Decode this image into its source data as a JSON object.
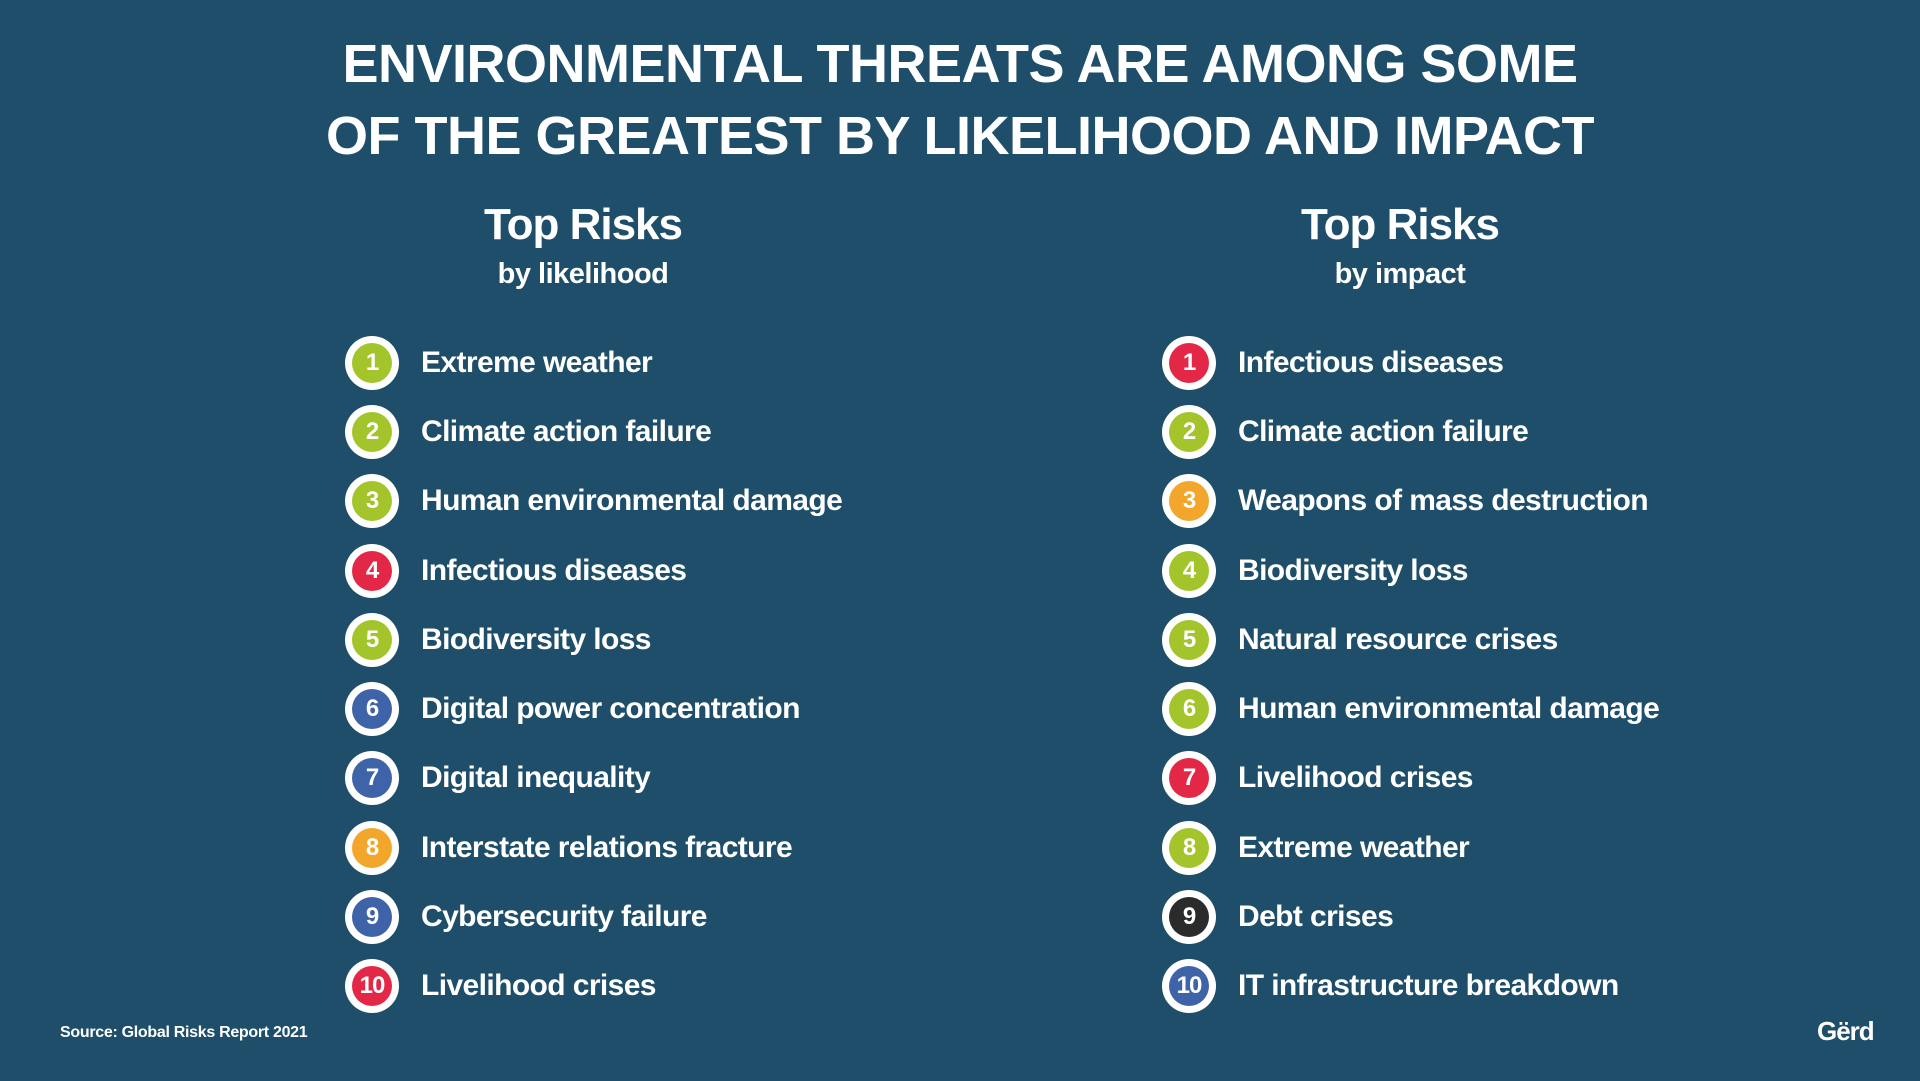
{
  "headline": {
    "line1": "ENVIRONMENTAL THREATS ARE AMONG SOME",
    "line2": "OF THE GREATEST BY LIKELIHOOD AND IMPACT"
  },
  "colors": {
    "background": "#1e4e69",
    "environmental": "#a3c42a",
    "societal": "#e22846",
    "technological": "#3f63a8",
    "geopolitical": "#f2a62b",
    "economic": "#2b2b2b"
  },
  "likelihood": {
    "title": "Top Risks",
    "subtitle": "by likelihood",
    "items": [
      {
        "rank": "1",
        "label": "Extreme weather",
        "color": "#a3c42a"
      },
      {
        "rank": "2",
        "label": "Climate action failure",
        "color": "#a3c42a"
      },
      {
        "rank": "3",
        "label": "Human environmental damage",
        "color": "#a3c42a"
      },
      {
        "rank": "4",
        "label": "Infectious diseases",
        "color": "#e22846"
      },
      {
        "rank": "5",
        "label": "Biodiversity loss",
        "color": "#a3c42a"
      },
      {
        "rank": "6",
        "label": "Digital power concentration",
        "color": "#3f63a8"
      },
      {
        "rank": "7",
        "label": "Digital inequality",
        "color": "#3f63a8"
      },
      {
        "rank": "8",
        "label": "Interstate relations fracture",
        "color": "#f2a62b"
      },
      {
        "rank": "9",
        "label": "Cybersecurity failure",
        "color": "#3f63a8"
      },
      {
        "rank": "10",
        "label": "Livelihood crises",
        "color": "#e22846"
      }
    ]
  },
  "impact": {
    "title": "Top Risks",
    "subtitle": "by impact",
    "items": [
      {
        "rank": "1",
        "label": "Infectious diseases",
        "color": "#e22846"
      },
      {
        "rank": "2",
        "label": "Climate action failure",
        "color": "#a3c42a"
      },
      {
        "rank": "3",
        "label": "Weapons of mass destruction",
        "color": "#f2a62b"
      },
      {
        "rank": "4",
        "label": "Biodiversity loss",
        "color": "#a3c42a"
      },
      {
        "rank": "5",
        "label": "Natural resource crises",
        "color": "#a3c42a"
      },
      {
        "rank": "6",
        "label": "Human environmental damage",
        "color": "#a3c42a"
      },
      {
        "rank": "7",
        "label": "Livelihood crises",
        "color": "#e22846"
      },
      {
        "rank": "8",
        "label": "Extreme weather",
        "color": "#a3c42a"
      },
      {
        "rank": "9",
        "label": "Debt crises",
        "color": "#2b2b2b"
      },
      {
        "rank": "10",
        "label": "IT infrastructure breakdown",
        "color": "#3f63a8"
      }
    ]
  },
  "footer": {
    "source": "Source: Global Risks Report 2021",
    "logo": "Gërd"
  }
}
